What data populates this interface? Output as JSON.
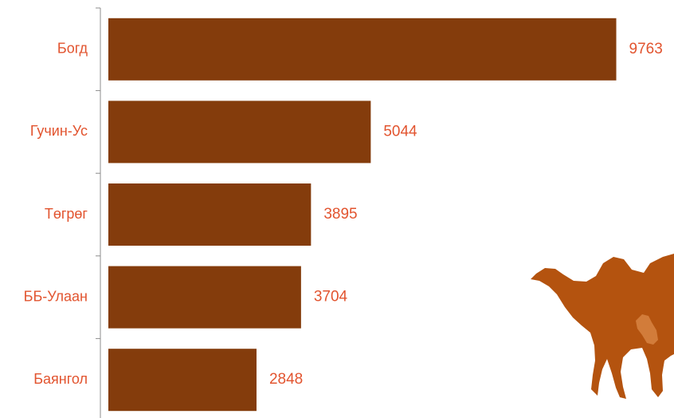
{
  "chart_data": {
    "type": "bar",
    "orientation": "horizontal",
    "categories": [
      "Богд",
      "Гучин-Ус",
      "Төгрөг",
      "ББ-Улаан",
      "Баянгол"
    ],
    "values": [
      9763,
      5044,
      3895,
      3704,
      2848
    ],
    "xlim": [
      0,
      10000
    ],
    "grid": false,
    "legend": "none",
    "colors": {
      "bar": "#843C0C",
      "label": "#E2542F",
      "axis": "#8C8C8C"
    }
  },
  "decoration": {
    "icon": "camel-silhouette-icon",
    "color": "#B4530F"
  }
}
